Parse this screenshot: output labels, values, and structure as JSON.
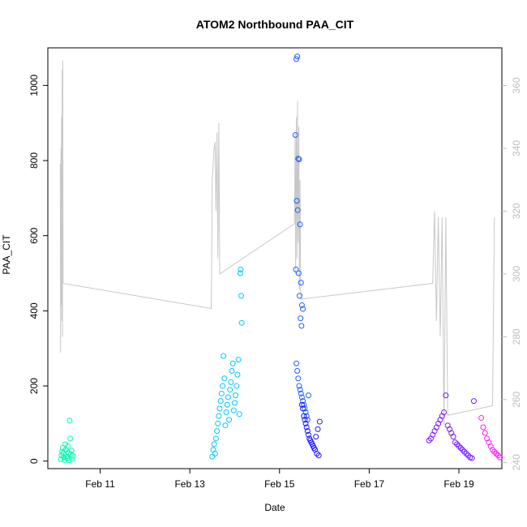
{
  "chart_data": {
    "type": "scatter",
    "title": "ATOM2 Northbound PAA_CIT",
    "xlabel": "Date",
    "ylabel": "PAA_CIT",
    "x_unit": "date",
    "xlim": [
      "2018-02-09 20:00",
      "2018-02-19 23:00"
    ],
    "ylim": [
      -20,
      1100
    ],
    "ylim_right": [
      238,
      372
    ],
    "y_ticks_left": [
      0,
      200,
      400,
      600,
      800,
      1000
    ],
    "y_ticks_right": [
      240,
      260,
      280,
      300,
      320,
      340,
      360
    ],
    "x_ticks": [
      {
        "x": "2018-02-11 00:00",
        "label": "Feb 11"
      },
      {
        "x": "2018-02-13 00:00",
        "label": "Feb 13"
      },
      {
        "x": "2018-02-15 00:00",
        "label": "Feb 15"
      },
      {
        "x": "2018-02-17 00:00",
        "label": "Feb 17"
      },
      {
        "x": "2018-02-19 00:00",
        "label": "Feb 19"
      }
    ],
    "grid": false,
    "legend": "none",
    "marker": "open-circle",
    "secondary_axis_color": "#bdbdbd",
    "series": [
      {
        "color": "#00ffb0",
        "points": [
          [
            "2018-02-10 03:00",
            5
          ],
          [
            "2018-02-10 03:20",
            15
          ],
          [
            "2018-02-10 03:40",
            25
          ],
          [
            "2018-02-10 04:00",
            35
          ],
          [
            "2018-02-10 04:20",
            20
          ],
          [
            "2018-02-10 04:40",
            10
          ],
          [
            "2018-02-10 05:00",
            3
          ],
          [
            "2018-02-10 05:20",
            45
          ],
          [
            "2018-02-10 05:40",
            30
          ],
          [
            "2018-02-10 06:00",
            12
          ],
          [
            "2018-02-10 06:20",
            8
          ],
          [
            "2018-02-10 06:40",
            40
          ],
          [
            "2018-02-10 07:00",
            22
          ],
          [
            "2018-02-10 07:20",
            2
          ],
          [
            "2018-02-10 07:40",
            108
          ],
          [
            "2018-02-10 08:00",
            60
          ],
          [
            "2018-02-10 08:20",
            18
          ],
          [
            "2018-02-10 08:40",
            28
          ],
          [
            "2018-02-10 09:00",
            6
          ],
          [
            "2018-02-10 09:20",
            14
          ]
        ]
      },
      {
        "color": "#00c8ff",
        "points": [
          [
            "2018-02-13 12:00",
            12
          ],
          [
            "2018-02-13 12:30",
            30
          ],
          [
            "2018-02-13 13:00",
            45
          ],
          [
            "2018-02-13 13:30",
            20
          ],
          [
            "2018-02-13 14:00",
            60
          ],
          [
            "2018-02-13 14:30",
            80
          ],
          [
            "2018-02-13 15:00",
            100
          ],
          [
            "2018-02-13 15:30",
            120
          ],
          [
            "2018-02-13 16:00",
            140
          ],
          [
            "2018-02-13 16:30",
            160
          ],
          [
            "2018-02-13 17:00",
            180
          ],
          [
            "2018-02-13 17:30",
            200
          ],
          [
            "2018-02-13 18:00",
            280
          ],
          [
            "2018-02-13 18:30",
            220
          ],
          [
            "2018-02-13 19:00",
            95
          ],
          [
            "2018-02-13 19:30",
            130
          ],
          [
            "2018-02-13 20:00",
            150
          ],
          [
            "2018-02-13 20:30",
            170
          ],
          [
            "2018-02-13 21:00",
            110
          ],
          [
            "2018-02-13 21:30",
            190
          ],
          [
            "2018-02-13 22:00",
            210
          ],
          [
            "2018-02-13 22:30",
            240
          ],
          [
            "2018-02-13 23:00",
            260
          ],
          [
            "2018-02-13 23:30",
            135
          ],
          [
            "2018-02-14 00:00",
            155
          ],
          [
            "2018-02-14 00:30",
            175
          ],
          [
            "2018-02-14 01:00",
            200
          ],
          [
            "2018-02-14 01:30",
            230
          ],
          [
            "2018-02-14 02:00",
            270
          ],
          [
            "2018-02-14 02:30",
            125
          ],
          [
            "2018-02-14 03:00",
            500
          ],
          [
            "2018-02-14 03:15",
            510
          ],
          [
            "2018-02-14 03:30",
            440
          ],
          [
            "2018-02-14 03:45",
            368
          ]
        ]
      },
      {
        "color": "#2060ff",
        "points": [
          [
            "2018-02-15 09:00",
            1070
          ],
          [
            "2018-02-15 09:30",
            1077
          ],
          [
            "2018-02-15 08:30",
            868
          ],
          [
            "2018-02-15 10:00",
            805
          ],
          [
            "2018-02-15 10:30",
            803
          ],
          [
            "2018-02-15 09:15",
            693
          ],
          [
            "2018-02-15 09:45",
            668
          ],
          [
            "2018-02-15 11:00",
            630
          ],
          [
            "2018-02-15 08:45",
            510
          ],
          [
            "2018-02-15 10:15",
            500
          ],
          [
            "2018-02-15 11:30",
            475
          ],
          [
            "2018-02-15 10:45",
            440
          ],
          [
            "2018-02-15 12:00",
            415
          ],
          [
            "2018-02-15 12:30",
            405
          ],
          [
            "2018-02-15 11:15",
            380
          ],
          [
            "2018-02-15 11:45",
            360
          ],
          [
            "2018-02-15 09:00",
            260
          ],
          [
            "2018-02-15 09:30",
            240
          ],
          [
            "2018-02-15 10:00",
            220
          ],
          [
            "2018-02-15 10:30",
            200
          ],
          [
            "2018-02-15 11:00",
            190
          ],
          [
            "2018-02-15 11:30",
            180
          ],
          [
            "2018-02-15 12:00",
            170
          ],
          [
            "2018-02-15 12:30",
            160
          ],
          [
            "2018-02-15 13:00",
            150
          ],
          [
            "2018-02-15 13:30",
            140
          ],
          [
            "2018-02-15 14:00",
            130
          ],
          [
            "2018-02-15 14:30",
            120
          ],
          [
            "2018-02-15 15:00",
            110
          ],
          [
            "2018-02-15 15:30",
            175
          ]
        ]
      },
      {
        "color": "#1a1aff",
        "points": [
          [
            "2018-02-15 12:00",
            150
          ],
          [
            "2018-02-15 13:00",
            120
          ],
          [
            "2018-02-15 14:00",
            100
          ],
          [
            "2018-02-15 15:00",
            80
          ],
          [
            "2018-02-15 16:00",
            60
          ],
          [
            "2018-02-15 17:00",
            50
          ],
          [
            "2018-02-15 18:00",
            40
          ],
          [
            "2018-02-15 19:00",
            30
          ],
          [
            "2018-02-15 20:00",
            20
          ],
          [
            "2018-02-15 21:00",
            15
          ],
          [
            "2018-02-15 12:30",
            140
          ],
          [
            "2018-02-15 13:30",
            110
          ],
          [
            "2018-02-15 14:30",
            90
          ],
          [
            "2018-02-15 15:30",
            70
          ],
          [
            "2018-02-15 16:30",
            55
          ],
          [
            "2018-02-15 17:30",
            45
          ],
          [
            "2018-02-15 18:30",
            35
          ],
          [
            "2018-02-15 19:30",
            65
          ],
          [
            "2018-02-15 20:30",
            85
          ],
          [
            "2018-02-15 21:30",
            105
          ]
        ]
      },
      {
        "color": "#7a1aff",
        "points": [
          [
            "2018-02-18 08:00",
            55
          ],
          [
            "2018-02-18 09:00",
            60
          ],
          [
            "2018-02-18 10:00",
            70
          ],
          [
            "2018-02-18 11:00",
            80
          ],
          [
            "2018-02-18 12:00",
            90
          ],
          [
            "2018-02-18 13:00",
            100
          ],
          [
            "2018-02-18 14:00",
            110
          ],
          [
            "2018-02-18 15:00",
            120
          ],
          [
            "2018-02-18 16:00",
            130
          ],
          [
            "2018-02-18 17:00",
            175
          ],
          [
            "2018-02-18 18:00",
            95
          ],
          [
            "2018-02-18 19:00",
            85
          ],
          [
            "2018-02-18 20:00",
            75
          ],
          [
            "2018-02-18 21:00",
            65
          ],
          [
            "2018-02-18 22:00",
            50
          ],
          [
            "2018-02-18 23:00",
            45
          ],
          [
            "2018-02-19 00:00",
            40
          ],
          [
            "2018-02-19 01:00",
            35
          ],
          [
            "2018-02-19 02:00",
            30
          ],
          [
            "2018-02-19 03:00",
            25
          ],
          [
            "2018-02-19 04:00",
            20
          ],
          [
            "2018-02-19 05:00",
            15
          ],
          [
            "2018-02-19 06:00",
            10
          ],
          [
            "2018-02-19 07:00",
            8
          ],
          [
            "2018-02-19 08:00",
            160
          ]
        ]
      },
      {
        "color": "#ff1aff",
        "points": [
          [
            "2018-02-19 12:00",
            115
          ],
          [
            "2018-02-19 13:00",
            90
          ],
          [
            "2018-02-19 14:00",
            75
          ],
          [
            "2018-02-19 15:00",
            60
          ],
          [
            "2018-02-19 16:00",
            50
          ],
          [
            "2018-02-19 17:00",
            40
          ],
          [
            "2018-02-19 18:00",
            30
          ],
          [
            "2018-02-19 19:00",
            25
          ],
          [
            "2018-02-19 20:00",
            20
          ],
          [
            "2018-02-19 21:00",
            15
          ],
          [
            "2018-02-19 22:00",
            10
          ]
        ]
      }
    ],
    "secondary_series": {
      "color": "#c8c8c8",
      "axis": "right",
      "points": [
        [
          "2018-02-10 02:40",
          335
        ],
        [
          "2018-02-10 02:50",
          275
        ],
        [
          "2018-02-10 03:00",
          340
        ],
        [
          "2018-02-10 03:10",
          290
        ],
        [
          "2018-02-10 03:20",
          350
        ],
        [
          "2018-02-10 03:30",
          285
        ],
        [
          "2018-02-10 03:40",
          365
        ],
        [
          "2018-02-10 03:50",
          280
        ],
        [
          "2018-02-10 04:00",
          368
        ],
        [
          "2018-02-10 04:10",
          297
        ],
        [
          "2018-02-13 11:30",
          289
        ],
        [
          "2018-02-13 12:00",
          330
        ],
        [
          "2018-02-13 12:30",
          335
        ],
        [
          "2018-02-13 13:00",
          340
        ],
        [
          "2018-02-13 13:30",
          342
        ],
        [
          "2018-02-13 14:00",
          320
        ],
        [
          "2018-02-13 14:30",
          345
        ],
        [
          "2018-02-13 15:00",
          305
        ],
        [
          "2018-02-13 15:30",
          348
        ],
        [
          "2018-02-13 16:00",
          300
        ],
        [
          "2018-02-15 08:00",
          316
        ],
        [
          "2018-02-15 08:20",
          345
        ],
        [
          "2018-02-15 08:40",
          300
        ],
        [
          "2018-02-15 09:00",
          350
        ],
        [
          "2018-02-15 09:20",
          305
        ],
        [
          "2018-02-15 09:40",
          355
        ],
        [
          "2018-02-15 10:00",
          310
        ],
        [
          "2018-02-15 10:20",
          347
        ],
        [
          "2018-02-15 10:40",
          295
        ],
        [
          "2018-02-15 11:00",
          330
        ],
        [
          "2018-02-15 11:20",
          292
        ],
        [
          "2018-02-18 10:00",
          297
        ],
        [
          "2018-02-18 11:00",
          320
        ],
        [
          "2018-02-18 12:00",
          285
        ],
        [
          "2018-02-18 13:00",
          318
        ],
        [
          "2018-02-18 14:00",
          280
        ],
        [
          "2018-02-18 15:00",
          318
        ],
        [
          "2018-02-18 16:00",
          252
        ],
        [
          "2018-02-18 17:00",
          318
        ],
        [
          "2018-02-18 18:00",
          255
        ],
        [
          "2018-02-19 18:00",
          258
        ],
        [
          "2018-02-19 19:00",
          318
        ]
      ]
    }
  }
}
